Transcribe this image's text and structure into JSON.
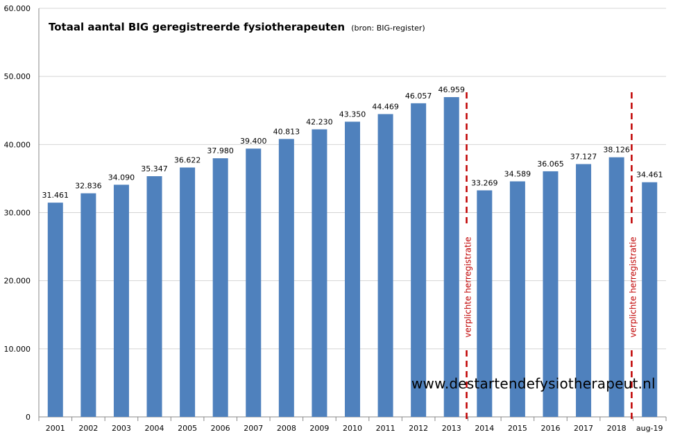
{
  "chart_data": {
    "type": "bar",
    "title": "Totaal aantal BIG geregistreerde fysiotherapeuten",
    "subtitle": "(bron: BIG-register)",
    "categories": [
      "2001",
      "2002",
      "2003",
      "2004",
      "2005",
      "2006",
      "2007",
      "2008",
      "2009",
      "2010",
      "2011",
      "2012",
      "2013",
      "2014",
      "2015",
      "2016",
      "2017",
      "2018",
      "aug-19"
    ],
    "values": [
      31461,
      32836,
      34090,
      35347,
      36622,
      37980,
      39400,
      40813,
      42230,
      43350,
      44469,
      46057,
      46959,
      33269,
      34589,
      36065,
      37127,
      38126,
      34461
    ],
    "value_labels": [
      "31.461",
      "32.836",
      "34.090",
      "35.347",
      "36.622",
      "37.980",
      "39.400",
      "40.813",
      "42.230",
      "43.350",
      "44.469",
      "46.057",
      "46.959",
      "33.269",
      "34.589",
      "36.065",
      "37.127",
      "38.126",
      "34.461"
    ],
    "y_ticks": [
      0,
      10000,
      20000,
      30000,
      40000,
      50000,
      60000
    ],
    "y_tick_labels": [
      "0",
      "10.000",
      "20.000",
      "30.000",
      "40.000",
      "50.000",
      "60.000"
    ],
    "ylim": [
      0,
      60000
    ],
    "grid": true,
    "bar_color": "#4f81bd",
    "annotations": [
      {
        "text": "verplichte herregistratie",
        "between": [
          "2013",
          "2014"
        ],
        "color": "#c00000"
      },
      {
        "text": "verplichte herregistratie",
        "between": [
          "2018",
          "aug-19"
        ],
        "color": "#c00000"
      }
    ]
  },
  "watermark": "www.destartendefysiotherapeut.nl"
}
